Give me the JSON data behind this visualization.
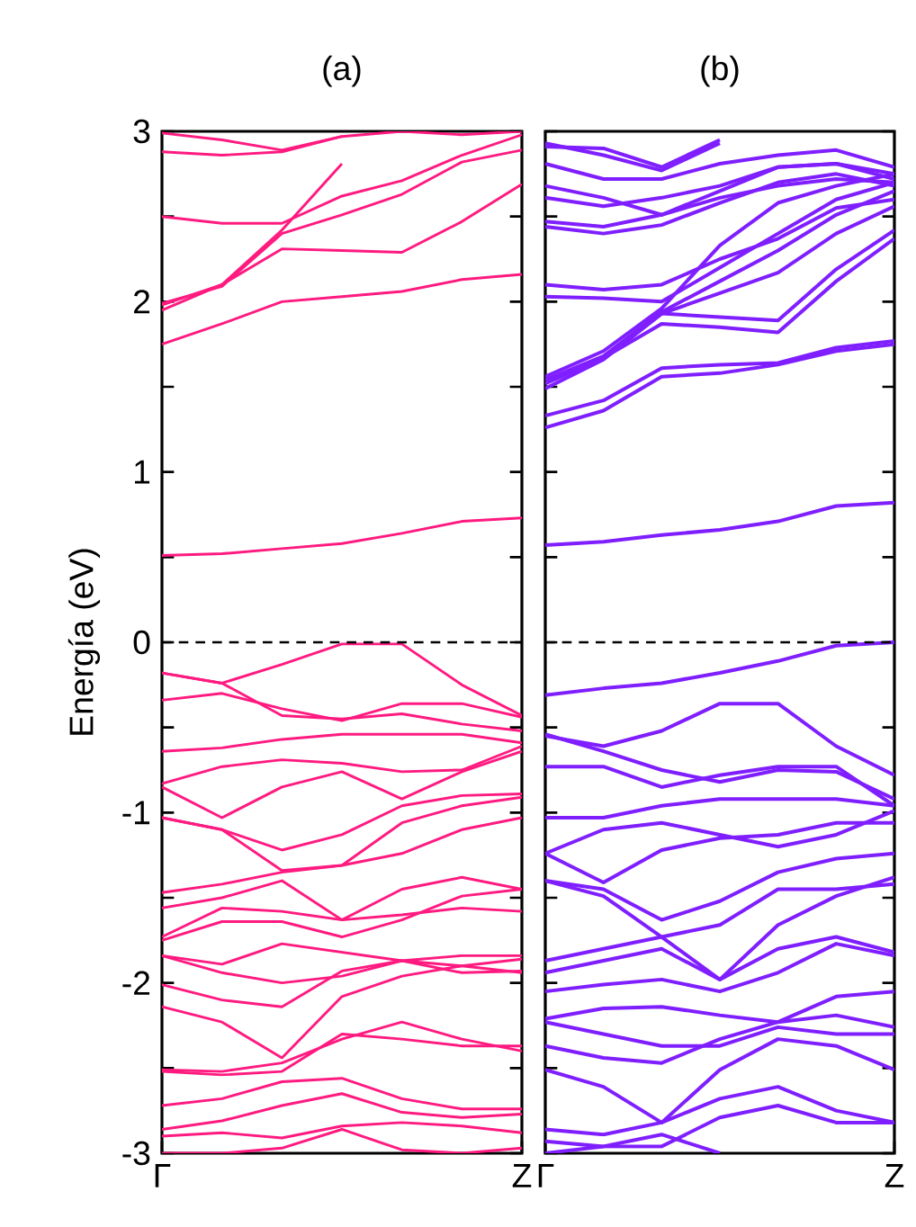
{
  "chart_data": [
    {
      "type": "line",
      "title": "(a)",
      "ylabel": "Energía (eV)",
      "categories": [
        "Γ",
        null,
        null,
        null,
        null,
        null,
        "Z"
      ],
      "ylim": [
        -3,
        3
      ],
      "yticks": [
        -3,
        {
          "value": -2.5,
          "label": null
        },
        -2,
        {
          "value": -1.5,
          "label": null
        },
        -1,
        {
          "value": -0.5,
          "label": null
        },
        0,
        {
          "value": 0.5,
          "label": null
        },
        1,
        {
          "value": 1.5,
          "label": null
        },
        2,
        {
          "value": 2.5,
          "label": null
        },
        3
      ],
      "ref_lines": [
        {
          "axis": "y",
          "value": 0,
          "line_style": "dashed",
          "color": "#000000"
        }
      ],
      "series": [
        {
          "color": "#ff1a80",
          "values": [
            0.51,
            0.52,
            0.55,
            0.58,
            0.64,
            0.71,
            0.73
          ]
        },
        {
          "color": "#ff1a80",
          "values": [
            1.75,
            1.87,
            2.0,
            2.03,
            2.06,
            2.13,
            2.16
          ]
        },
        {
          "color": "#ff1a80",
          "values": [
            1.95,
            2.1,
            2.31,
            2.3,
            2.29,
            2.47,
            2.69
          ]
        },
        {
          "color": "#ff1a80",
          "values": [
            1.99,
            2.09,
            2.4,
            2.51,
            2.63,
            2.82,
            2.89
          ]
        },
        {
          "color": "#ff1a80",
          "values": [
            1.98,
            2.1,
            2.42,
            2.81,
            null,
            null,
            null
          ]
        },
        {
          "color": "#ff1a80",
          "values": [
            2.5,
            2.46,
            2.46,
            2.62,
            2.71,
            2.86,
            2.98
          ]
        },
        {
          "color": "#ff1a80",
          "values": [
            2.88,
            2.86,
            2.88,
            2.97,
            null,
            null,
            null
          ]
        },
        {
          "color": "#ff1a80",
          "values": [
            2.99,
            2.95,
            2.89,
            2.97,
            3.0,
            2.98,
            3.0
          ]
        },
        {
          "color": "#ff1a80",
          "values": [
            -0.18,
            -0.24,
            -0.13,
            -0.01,
            -0.01,
            -0.25,
            -0.43
          ]
        },
        {
          "color": "#ff1a80",
          "values": [
            -0.34,
            -0.3,
            -0.39,
            -0.46,
            -0.36,
            -0.36,
            -0.44
          ]
        },
        {
          "color": "#ff1a80",
          "values": [
            -0.18,
            -0.24,
            -0.43,
            -0.45,
            -0.42,
            -0.48,
            -0.52
          ]
        },
        {
          "color": "#ff1a80",
          "values": [
            -0.64,
            -0.62,
            -0.57,
            -0.54,
            -0.54,
            -0.54,
            -0.59
          ]
        },
        {
          "color": "#ff1a80",
          "values": [
            -0.83,
            -0.73,
            -0.69,
            -0.71,
            -0.76,
            -0.75,
            -0.61
          ]
        },
        {
          "color": "#ff1a80",
          "values": [
            -0.85,
            -1.03,
            -0.85,
            -0.76,
            -0.92,
            -0.76,
            -0.64
          ]
        },
        {
          "color": "#ff1a80",
          "values": [
            -1.03,
            -1.1,
            -1.22,
            -1.13,
            -0.96,
            -0.9,
            -0.89
          ]
        },
        {
          "color": "#ff1a80",
          "values": [
            -1.03,
            -1.1,
            -1.34,
            -1.31,
            -1.06,
            -0.96,
            -0.91
          ]
        },
        {
          "color": "#ff1a80",
          "values": [
            -1.47,
            -1.42,
            -1.35,
            -1.31,
            -1.24,
            -1.1,
            -1.03
          ]
        },
        {
          "color": "#ff1a80",
          "values": [
            -1.56,
            -1.5,
            -1.4,
            -1.63,
            -1.45,
            -1.38,
            -1.45
          ]
        },
        {
          "color": "#ff1a80",
          "values": [
            -1.73,
            -1.56,
            -1.58,
            -1.63,
            -1.6,
            -1.56,
            -1.58
          ]
        },
        {
          "color": "#ff1a80",
          "values": [
            -1.75,
            -1.64,
            -1.64,
            -1.73,
            -1.63,
            -1.49,
            -1.45
          ]
        },
        {
          "color": "#ff1a80",
          "values": [
            -1.84,
            -1.89,
            -1.77,
            -1.82,
            -1.87,
            -1.94,
            -1.93
          ]
        },
        {
          "color": "#ff1a80",
          "values": [
            -1.84,
            -1.94,
            -2.0,
            -1.96,
            -1.87,
            -1.84,
            -1.84
          ]
        },
        {
          "color": "#ff1a80",
          "values": [
            -2.01,
            -2.1,
            -2.14,
            -1.93,
            -1.87,
            -1.9,
            -1.94
          ]
        },
        {
          "color": "#ff1a80",
          "values": [
            -2.14,
            -2.23,
            -2.44,
            -2.08,
            -1.96,
            -1.9,
            -1.86
          ]
        },
        {
          "color": "#ff1a80",
          "values": [
            -2.51,
            -2.52,
            -2.47,
            -2.33,
            -2.23,
            -2.33,
            -2.4
          ]
        },
        {
          "color": "#ff1a80",
          "values": [
            -2.52,
            -2.54,
            -2.52,
            -2.3,
            -2.33,
            -2.37,
            -2.37
          ]
        },
        {
          "color": "#ff1a80",
          "values": [
            -2.72,
            -2.68,
            -2.58,
            -2.56,
            -2.68,
            -2.74,
            -2.74
          ]
        },
        {
          "color": "#ff1a80",
          "values": [
            -2.86,
            -2.81,
            -2.72,
            -2.65,
            -2.76,
            -2.79,
            -2.77
          ]
        },
        {
          "color": "#ff1a80",
          "values": [
            -2.9,
            -2.88,
            -2.91,
            -2.84,
            -2.82,
            -2.84,
            -2.88
          ]
        },
        {
          "color": "#ff1a80",
          "values": [
            -3.0,
            -3.0,
            -2.97,
            -2.86,
            -2.98,
            -3.0,
            -2.97
          ]
        }
      ]
    },
    {
      "type": "line",
      "title": "(b)",
      "categories": [
        "Γ",
        null,
        null,
        null,
        null,
        null,
        "Z"
      ],
      "ylim": [
        -3,
        3
      ],
      "yticks": [
        -3,
        {
          "value": -2.5,
          "label": null
        },
        -2,
        {
          "value": -1.5,
          "label": null
        },
        -1,
        {
          "value": -0.5,
          "label": null
        },
        0,
        {
          "value": 0.5,
          "label": null
        },
        1,
        {
          "value": 1.5,
          "label": null
        },
        2,
        {
          "value": 2.5,
          "label": null
        },
        3
      ],
      "tick_labels": "x",
      "ref_lines": [
        {
          "axis": "y",
          "value": 0,
          "line_style": "dashed",
          "color": "#000000"
        }
      ],
      "series": [
        {
          "color": "#7f1fff",
          "values": [
            0.57,
            0.59,
            0.63,
            0.66,
            0.71,
            0.8,
            0.82
          ]
        },
        {
          "color": "#7f1fff",
          "values": [
            1.26,
            1.36,
            1.56,
            1.58,
            1.63,
            1.71,
            1.75
          ]
        },
        {
          "color": "#7f1fff",
          "values": [
            1.33,
            1.42,
            1.61,
            1.63,
            1.64,
            1.73,
            1.77
          ]
        },
        {
          "color": "#7f1fff",
          "values": [
            1.49,
            1.66,
            1.93,
            2.05,
            2.17,
            2.4,
            2.56
          ]
        },
        {
          "color": "#7f1fff",
          "values": [
            1.54,
            1.68,
            1.94,
            2.12,
            2.3,
            2.51,
            2.65
          ]
        },
        {
          "color": "#7f1fff",
          "values": [
            1.52,
            1.67,
            1.93,
            1.91,
            1.89,
            2.19,
            2.42
          ]
        },
        {
          "color": "#7f1fff",
          "values": [
            1.52,
            1.67,
            1.87,
            1.85,
            1.82,
            2.12,
            2.37
          ]
        },
        {
          "color": "#7f1fff",
          "values": [
            1.56,
            1.71,
            1.96,
            2.33,
            2.58,
            2.68,
            2.75
          ]
        },
        {
          "color": "#7f1fff",
          "values": [
            2.1,
            2.07,
            2.1,
            2.25,
            2.37,
            2.55,
            2.6
          ]
        },
        {
          "color": "#7f1fff",
          "values": [
            2.03,
            2.02,
            2.0,
            2.2,
            2.4,
            2.6,
            2.7
          ]
        },
        {
          "color": "#7f1fff",
          "values": [
            2.44,
            2.4,
            2.45,
            2.58,
            2.7,
            2.75,
            2.68
          ]
        },
        {
          "color": "#7f1fff",
          "values": [
            2.47,
            2.44,
            2.51,
            2.65,
            2.79,
            2.81,
            2.75
          ]
        },
        {
          "color": "#7f1fff",
          "values": [
            2.61,
            2.56,
            2.61,
            2.68,
            2.79,
            2.81,
            2.72
          ]
        },
        {
          "color": "#7f1fff",
          "values": [
            2.68,
            2.61,
            2.51,
            2.61,
            2.68,
            2.72,
            2.7
          ]
        },
        {
          "color": "#7f1fff",
          "values": [
            2.81,
            2.72,
            2.72,
            2.81,
            2.86,
            2.89,
            2.79
          ]
        },
        {
          "color": "#7f1fff",
          "values": [
            2.93,
            2.86,
            2.77,
            2.93,
            null,
            null,
            null
          ]
        },
        {
          "color": "#7f1fff",
          "values": [
            2.91,
            2.9,
            2.79,
            2.95,
            null,
            null,
            null
          ]
        },
        {
          "color": "#7f1fff",
          "values": [
            -0.31,
            -0.27,
            -0.24,
            -0.18,
            -0.11,
            -0.02,
            0.0
          ]
        },
        {
          "color": "#7f1fff",
          "values": [
            -0.55,
            -0.61,
            -0.52,
            -0.36,
            -0.36,
            -0.61,
            -0.78
          ]
        },
        {
          "color": "#7f1fff",
          "values": [
            -0.54,
            -0.64,
            -0.75,
            -0.82,
            -0.75,
            -0.76,
            -0.92
          ]
        },
        {
          "color": "#7f1fff",
          "values": [
            -0.73,
            -0.73,
            -0.85,
            -0.78,
            -0.73,
            -0.73,
            -0.96
          ]
        },
        {
          "color": "#7f1fff",
          "values": [
            -1.03,
            -1.03,
            -0.96,
            -0.92,
            -0.92,
            -0.92,
            -0.96
          ]
        },
        {
          "color": "#7f1fff",
          "values": [
            -1.24,
            -1.1,
            -1.06,
            -1.13,
            -1.2,
            -1.13,
            -0.99
          ]
        },
        {
          "color": "#7f1fff",
          "values": [
            -1.24,
            -1.41,
            -1.22,
            -1.15,
            -1.13,
            -1.06,
            -1.06
          ]
        },
        {
          "color": "#7f1fff",
          "values": [
            -1.4,
            -1.45,
            -1.63,
            -1.52,
            -1.35,
            -1.27,
            -1.24
          ]
        },
        {
          "color": "#7f1fff",
          "values": [
            -1.4,
            -1.49,
            -1.73,
            -1.98,
            -1.66,
            -1.49,
            -1.38
          ]
        },
        {
          "color": "#7f1fff",
          "values": [
            -1.87,
            -1.8,
            -1.73,
            -1.66,
            -1.45,
            -1.45,
            -1.42
          ]
        },
        {
          "color": "#7f1fff",
          "values": [
            -1.94,
            -1.87,
            -1.8,
            -1.98,
            -1.8,
            -1.73,
            -1.82
          ]
        },
        {
          "color": "#7f1fff",
          "values": [
            -2.05,
            -2.01,
            -1.98,
            -2.05,
            -1.94,
            -1.77,
            -1.84
          ]
        },
        {
          "color": "#7f1fff",
          "values": [
            -2.21,
            -2.15,
            -2.14,
            -2.19,
            -2.23,
            -2.19,
            -2.26
          ]
        },
        {
          "color": "#7f1fff",
          "values": [
            -2.23,
            -2.3,
            -2.37,
            -2.37,
            -2.26,
            -2.3,
            -2.3
          ]
        },
        {
          "color": "#7f1fff",
          "values": [
            -2.37,
            -2.44,
            -2.47,
            -2.33,
            -2.23,
            -2.08,
            -2.05
          ]
        },
        {
          "color": "#7f1fff",
          "values": [
            -2.51,
            -2.61,
            -2.82,
            -2.51,
            -2.33,
            -2.37,
            -2.51
          ]
        },
        {
          "color": "#7f1fff",
          "values": [
            -2.86,
            -2.89,
            -2.82,
            -2.68,
            -2.61,
            -2.75,
            -2.82
          ]
        },
        {
          "color": "#7f1fff",
          "values": [
            -2.93,
            -2.96,
            -2.96,
            -2.79,
            -2.72,
            -2.82,
            -2.82
          ]
        },
        {
          "color": "#7f1fff",
          "values": [
            -3.0,
            -2.96,
            -2.89,
            -3.0,
            null,
            null,
            null
          ]
        }
      ]
    }
  ]
}
